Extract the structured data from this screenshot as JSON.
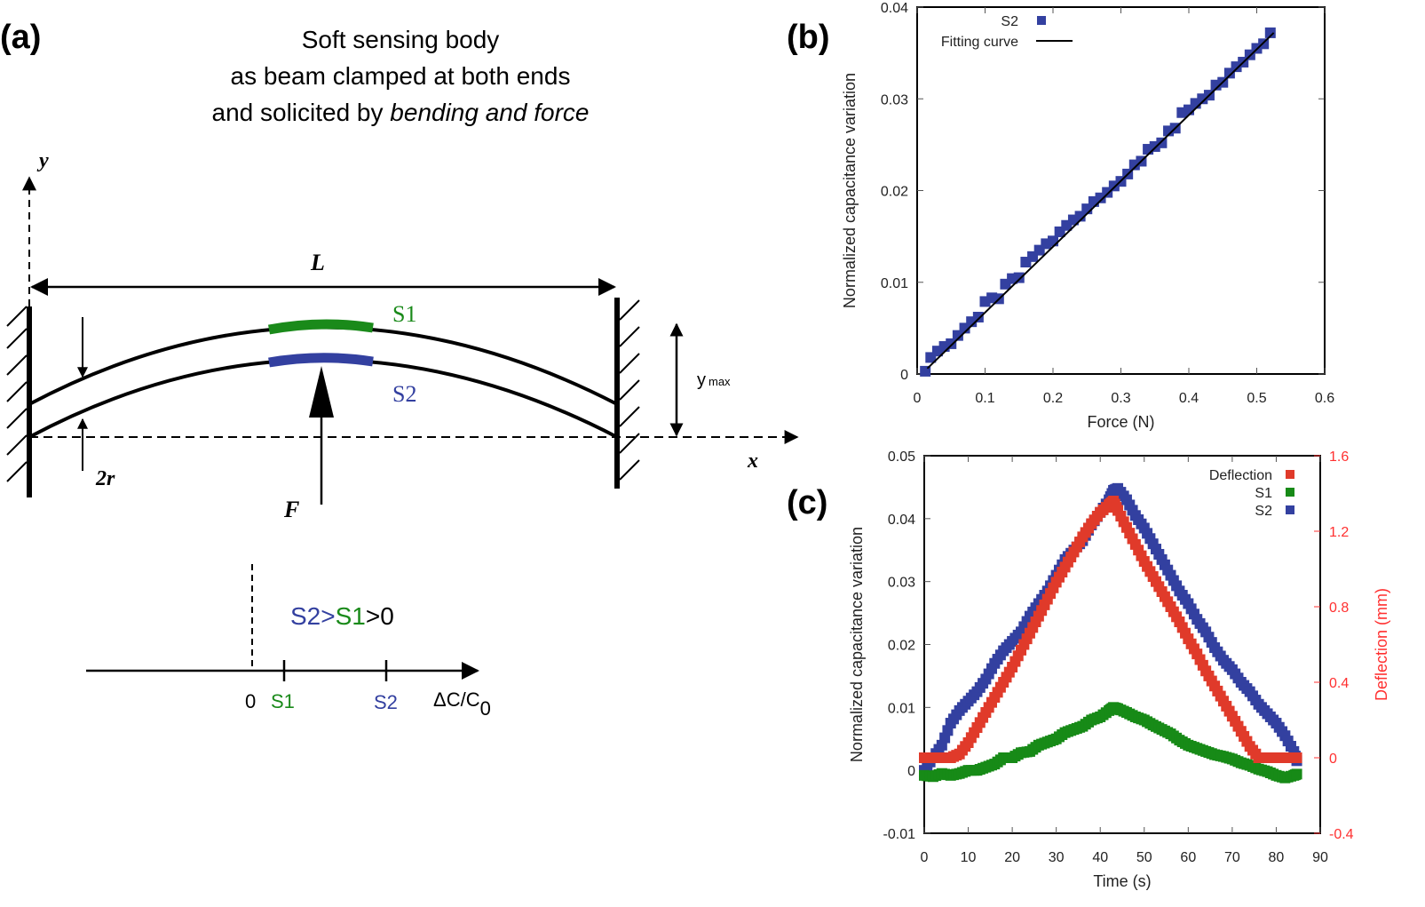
{
  "panel_a": {
    "label": "(a)",
    "title_lines": [
      "Soft sensing body",
      "as beam clamped at both ends",
      "and solicited by "
    ],
    "title_italic": "bending and force",
    "y_axis": "y",
    "x_axis": "x",
    "length": "L",
    "s1": "S1",
    "s2": "S2",
    "ymax_main": "y",
    "ymax_sub": "max",
    "radius": "2r",
    "force": "F",
    "relation": {
      "s2": "S2",
      "gt1": ">",
      "s1": "S1",
      "gt2": ">0"
    },
    "axis_zero": "0",
    "axis_s1": "S1",
    "axis_s2": "S2",
    "axis_label": "ΔC/C",
    "axis_label_sub": "0",
    "colors": {
      "s1": "#1a8a1a",
      "s2": "#3340a0"
    }
  },
  "chart_data": [
    {
      "panel_label": "(b)",
      "type": "scatter",
      "xlabel": "Force (N)",
      "ylabel": "Normalized capacitance variation",
      "xlim": [
        0,
        0.6
      ],
      "ylim": [
        0,
        0.04
      ],
      "xticks": [
        "0",
        "0.1",
        "0.2",
        "0.3",
        "0.4",
        "0.5",
        "0.6"
      ],
      "yticks": [
        "0",
        "0.01",
        "0.02",
        "0.03",
        "0.04"
      ],
      "legend": "top-left",
      "series": [
        {
          "name": "S2",
          "color": "#3340a0",
          "marker": "square",
          "x": [
            0.012,
            0.02,
            0.03,
            0.04,
            0.05,
            0.06,
            0.07,
            0.08,
            0.09,
            0.1,
            0.11,
            0.12,
            0.13,
            0.14,
            0.15,
            0.16,
            0.17,
            0.18,
            0.19,
            0.2,
            0.21,
            0.22,
            0.23,
            0.24,
            0.25,
            0.26,
            0.27,
            0.28,
            0.29,
            0.3,
            0.31,
            0.32,
            0.33,
            0.34,
            0.35,
            0.36,
            0.37,
            0.38,
            0.39,
            0.4,
            0.41,
            0.42,
            0.43,
            0.44,
            0.45,
            0.46,
            0.47,
            0.48,
            0.49,
            0.5,
            0.51,
            0.52
          ],
          "y": [
            0.0003,
            0.0018,
            0.0025,
            0.003,
            0.0033,
            0.0042,
            0.005,
            0.0057,
            0.0062,
            0.0079,
            0.0083,
            0.0082,
            0.0098,
            0.0104,
            0.0105,
            0.0122,
            0.0128,
            0.0135,
            0.0142,
            0.0145,
            0.0155,
            0.0162,
            0.0168,
            0.0172,
            0.018,
            0.0188,
            0.0192,
            0.0198,
            0.0205,
            0.021,
            0.0218,
            0.0228,
            0.0232,
            0.0245,
            0.0248,
            0.0252,
            0.0265,
            0.0268,
            0.0285,
            0.0288,
            0.0295,
            0.03,
            0.0304,
            0.0315,
            0.0318,
            0.0328,
            0.0335,
            0.034,
            0.0348,
            0.0355,
            0.036,
            0.0372
          ]
        },
        {
          "name": "Fitting curve",
          "color": "#000000",
          "type": "line",
          "x": [
            0.015,
            0.525
          ],
          "y": [
            0.0006,
            0.0372
          ]
        }
      ]
    },
    {
      "panel_label": "(c)",
      "type": "scatter",
      "xlabel": "Time (s)",
      "ylabel": "Normalized capacitance variation",
      "ylabel_right": "Deflection (mm)",
      "xlim": [
        0,
        90
      ],
      "ylim": [
        -0.01,
        0.05
      ],
      "ylim_right": [
        -0.4,
        1.6
      ],
      "xticks": [
        "0",
        "10",
        "20",
        "30",
        "40",
        "50",
        "60",
        "70",
        "80",
        "90"
      ],
      "yticks": [
        "-0.01",
        "0",
        "0.01",
        "0.02",
        "0.03",
        "0.04",
        "0.05"
      ],
      "yticks_right": [
        "-0.4",
        "0",
        "0.4",
        "0.8",
        "1.2",
        "1.6"
      ],
      "legend": "top-right",
      "colors": {
        "right_axis": "#ff3030"
      },
      "x": [
        0,
        2,
        4,
        6,
        8,
        10,
        12,
        14,
        16,
        18,
        20,
        22,
        24,
        26,
        28,
        30,
        32,
        34,
        36,
        38,
        40,
        42,
        43,
        44,
        46,
        48,
        50,
        52,
        54,
        56,
        58,
        60,
        62,
        64,
        66,
        68,
        70,
        72,
        74,
        76,
        78,
        80,
        82,
        84,
        85
      ],
      "series": [
        {
          "name": "Deflection",
          "color": "#e03a2a",
          "axis": "right",
          "y": [
            0,
            0,
            0,
            0,
            0.02,
            0.08,
            0.16,
            0.24,
            0.32,
            0.4,
            0.48,
            0.57,
            0.66,
            0.75,
            0.84,
            0.93,
            1.01,
            1.09,
            1.17,
            1.24,
            1.3,
            1.34,
            1.36,
            1.31,
            1.22,
            1.13,
            1.04,
            0.96,
            0.88,
            0.8,
            0.72,
            0.63,
            0.55,
            0.46,
            0.38,
            0.3,
            0.22,
            0.14,
            0.06,
            0,
            0,
            0,
            0,
            0,
            0
          ]
        },
        {
          "name": "S1",
          "color": "#178a17",
          "axis": "left",
          "y": [
            -0.0008,
            -0.001,
            -0.0005,
            -0.0008,
            -0.0005,
            0,
            0,
            0.0005,
            0.001,
            0.002,
            0.002,
            0.0028,
            0.003,
            0.004,
            0.0045,
            0.005,
            0.006,
            0.0065,
            0.007,
            0.008,
            0.0085,
            0.0095,
            0.01,
            0.0098,
            0.0092,
            0.0085,
            0.008,
            0.0072,
            0.0065,
            0.0058,
            0.0048,
            0.004,
            0.0035,
            0.003,
            0.0025,
            0.0022,
            0.0018,
            0.0012,
            0.0008,
            0.0002,
            -0.0002,
            -0.0008,
            -0.0012,
            -0.0008,
            -0.0005
          ]
        },
        {
          "name": "S2",
          "color": "#3340a0",
          "axis": "left",
          "y": [
            0,
            0.002,
            0.004,
            0.0075,
            0.0095,
            0.011,
            0.0125,
            0.0145,
            0.017,
            0.019,
            0.0205,
            0.022,
            0.0245,
            0.0265,
            0.0285,
            0.031,
            0.0335,
            0.035,
            0.0365,
            0.039,
            0.041,
            0.043,
            0.0445,
            0.0448,
            0.043,
            0.0405,
            0.0385,
            0.036,
            0.0335,
            0.031,
            0.0285,
            0.0265,
            0.024,
            0.022,
            0.0195,
            0.0175,
            0.016,
            0.014,
            0.0125,
            0.0105,
            0.009,
            0.0075,
            0.0055,
            0.003,
            0.0008
          ]
        }
      ]
    }
  ]
}
